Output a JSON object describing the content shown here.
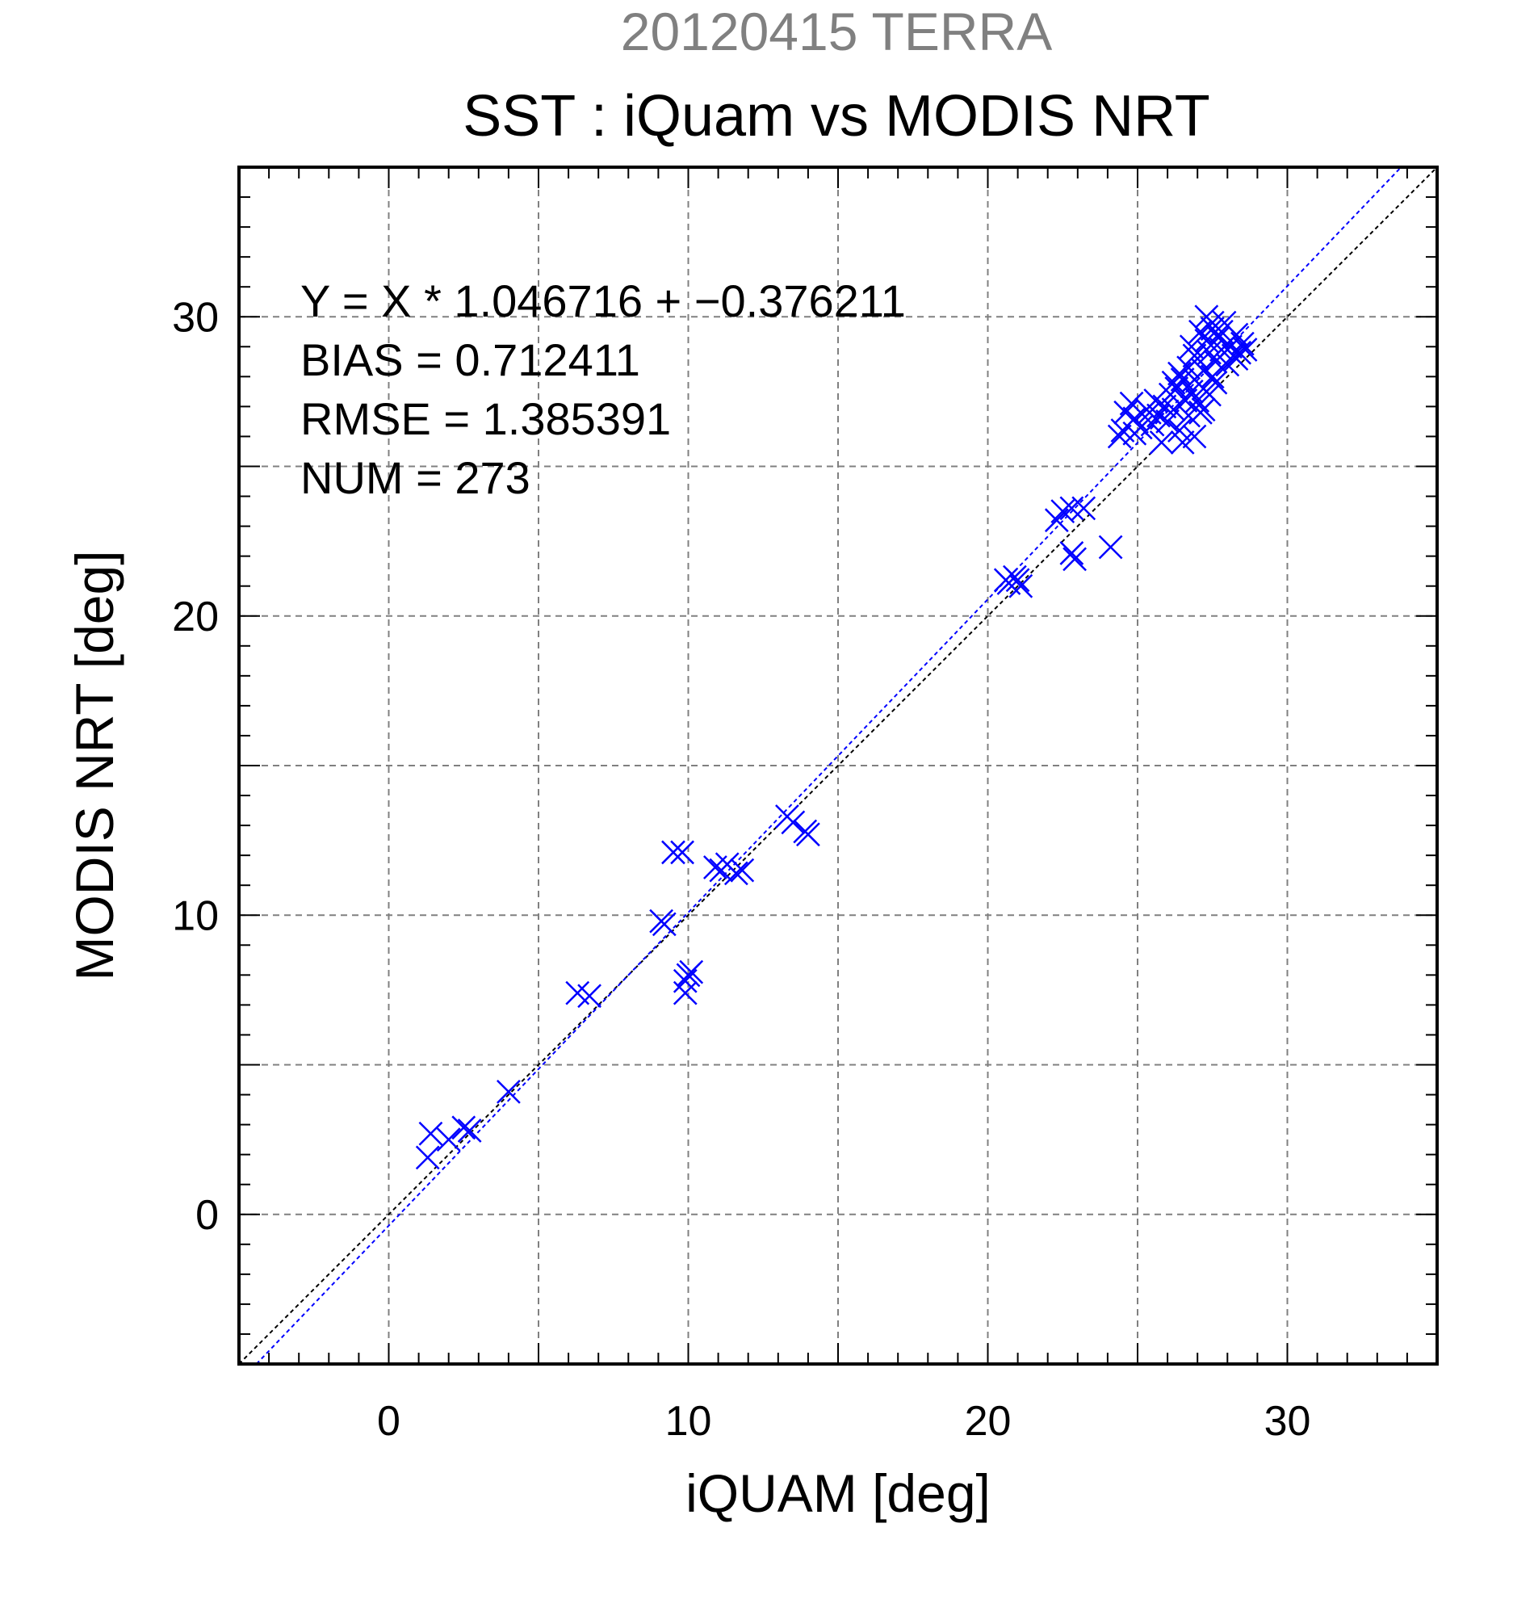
{
  "chart_data": {
    "type": "scatter",
    "title_line1": "20120415 TERRA",
    "title_line2": "SST : iQuam vs MODIS NRT",
    "xlabel": "iQUAM [deg]",
    "ylabel": "MODIS NRT [deg]",
    "xlim": [
      -5,
      35
    ],
    "ylim": [
      -5,
      35
    ],
    "xticks": [
      0,
      10,
      20,
      30
    ],
    "yticks": [
      0,
      10,
      20,
      30
    ],
    "grid": true,
    "stats": [
      "Y = X * 1.046716 + −0.376211",
      "BIAS = 0.712411",
      "RMSE = 1.385391",
      "NUM = 273"
    ],
    "reference_lines": [
      {
        "label": "1:1",
        "slope": 1.0,
        "intercept": 0.0,
        "color": "#000000"
      },
      {
        "label": "regression",
        "slope": 1.046716,
        "intercept": -0.376211,
        "color": "#0000ff"
      }
    ],
    "marker_color": "#0000ff",
    "marker": "x",
    "points": [
      [
        1.4,
        2.7
      ],
      [
        1.3,
        1.9
      ],
      [
        2.0,
        2.5
      ],
      [
        2.5,
        2.9
      ],
      [
        2.7,
        2.8
      ],
      [
        4.0,
        4.1
      ],
      [
        6.3,
        7.4
      ],
      [
        6.7,
        7.3
      ],
      [
        9.1,
        9.8
      ],
      [
        9.2,
        9.7
      ],
      [
        9.5,
        12.1
      ],
      [
        9.8,
        12.1
      ],
      [
        9.9,
        7.4
      ],
      [
        9.9,
        7.8
      ],
      [
        10.0,
        8.0
      ],
      [
        10.1,
        8.1
      ],
      [
        10.9,
        11.6
      ],
      [
        11.1,
        11.5
      ],
      [
        11.3,
        11.7
      ],
      [
        11.6,
        11.4
      ],
      [
        11.8,
        11.5
      ],
      [
        13.3,
        13.3
      ],
      [
        13.5,
        13.1
      ],
      [
        13.9,
        12.8
      ],
      [
        14.0,
        12.7
      ],
      [
        20.6,
        21.2
      ],
      [
        20.7,
        21.1
      ],
      [
        20.9,
        21.3
      ],
      [
        21.0,
        21.2
      ],
      [
        21.1,
        21.0
      ],
      [
        22.3,
        23.2
      ],
      [
        22.5,
        23.5
      ],
      [
        22.8,
        23.6
      ],
      [
        23.2,
        23.6
      ],
      [
        22.9,
        21.9
      ],
      [
        22.8,
        22.1
      ],
      [
        24.1,
        22.3
      ],
      [
        24.4,
        26.0
      ],
      [
        24.5,
        26.2
      ],
      [
        24.6,
        26.8
      ],
      [
        24.8,
        27.1
      ],
      [
        24.9,
        26.1
      ],
      [
        25.1,
        26.3
      ],
      [
        25.3,
        26.9
      ],
      [
        25.5,
        26.4
      ],
      [
        25.6,
        27.2
      ],
      [
        25.7,
        26.7
      ],
      [
        25.8,
        25.8
      ],
      [
        25.9,
        27.0
      ],
      [
        26.0,
        26.5
      ],
      [
        26.1,
        27.4
      ],
      [
        26.2,
        26.9
      ],
      [
        26.3,
        27.6
      ],
      [
        26.4,
        26.2
      ],
      [
        26.5,
        25.8
      ],
      [
        26.5,
        27.9
      ],
      [
        26.6,
        27.2
      ],
      [
        26.7,
        28.3
      ],
      [
        26.7,
        26.7
      ],
      [
        26.8,
        27.5
      ],
      [
        26.8,
        29.0
      ],
      [
        26.9,
        27.9
      ],
      [
        26.9,
        26.0
      ],
      [
        27.0,
        28.6
      ],
      [
        27.0,
        27.2
      ],
      [
        27.1,
        29.5
      ],
      [
        27.1,
        26.8
      ],
      [
        27.2,
        28.2
      ],
      [
        27.2,
        27.6
      ],
      [
        27.3,
        29.2
      ],
      [
        27.3,
        30.0
      ],
      [
        27.4,
        28.8
      ],
      [
        27.4,
        27.4
      ],
      [
        27.5,
        29.6
      ],
      [
        27.5,
        28.0
      ],
      [
        27.6,
        28.5
      ],
      [
        27.6,
        27.8
      ],
      [
        27.7,
        29.3
      ],
      [
        27.8,
        28.9
      ],
      [
        27.9,
        29.8
      ],
      [
        28.0,
        28.4
      ],
      [
        28.1,
        29.0
      ],
      [
        28.2,
        28.7
      ],
      [
        28.3,
        29.4
      ],
      [
        28.4,
        28.8
      ],
      [
        28.5,
        29.1
      ],
      [
        28.6,
        28.9
      ],
      [
        26.4,
        28.1
      ],
      [
        26.2,
        27.8
      ],
      [
        25.4,
        26.8
      ],
      [
        24.9,
        26.6
      ],
      [
        27.8,
        29.5
      ],
      [
        28.0,
        29.1
      ],
      [
        27.2,
        26.9
      ],
      [
        27.5,
        29.8
      ],
      [
        26.9,
        28.7
      ],
      [
        28.3,
        28.6
      ]
    ]
  }
}
